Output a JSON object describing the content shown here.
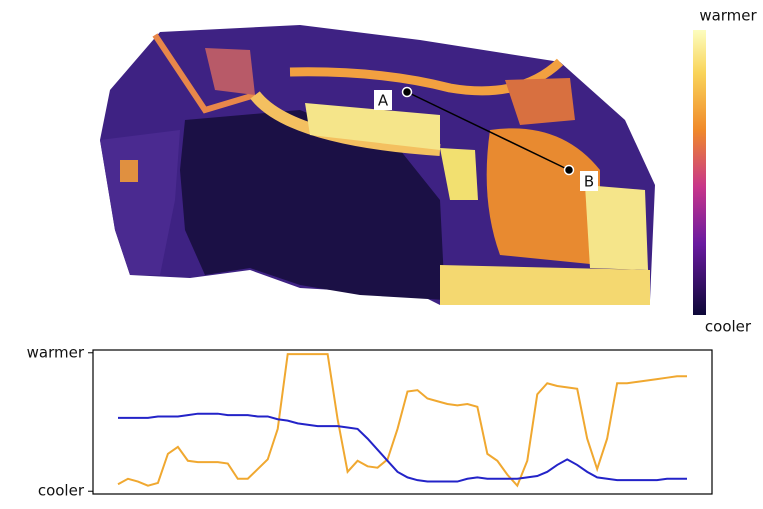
{
  "map": {
    "point_labels": [
      "A",
      "B"
    ],
    "colorbar": {
      "top_label": "warmer",
      "bottom_label": "cooler"
    }
  },
  "chart_data": {
    "type": "line",
    "categories": [
      null,
      null,
      null,
      null,
      null,
      null,
      null,
      null,
      null,
      null,
      null,
      null,
      null,
      null,
      null,
      null,
      null,
      null,
      null,
      null,
      null,
      null,
      null,
      null,
      null,
      null,
      null,
      null,
      null,
      null,
      null,
      null,
      null,
      null,
      null,
      null,
      null,
      null,
      null,
      null,
      null,
      null,
      null,
      null,
      null,
      null,
      null,
      null,
      null,
      null,
      null,
      null,
      null,
      null,
      null,
      null,
      null,
      null
    ],
    "series": [
      {
        "color": "#f0a830",
        "values": [
          0.05,
          0.09,
          0.07,
          0.04,
          0.06,
          0.27,
          0.32,
          0.22,
          0.21,
          0.21,
          0.21,
          0.2,
          0.09,
          0.09,
          0.16,
          0.23,
          0.45,
          0.99,
          0.99,
          0.99,
          0.99,
          0.99,
          0.52,
          0.14,
          0.22,
          0.18,
          0.17,
          0.23,
          0.45,
          0.72,
          0.73,
          0.67,
          0.65,
          0.63,
          0.62,
          0.63,
          0.61,
          0.27,
          0.22,
          0.12,
          0.04,
          0.22,
          0.7,
          0.78,
          0.76,
          0.75,
          0.74,
          0.38,
          0.16,
          0.38,
          0.78,
          0.78,
          0.79,
          0.8,
          0.81,
          0.82,
          0.83,
          0.83
        ]
      },
      {
        "color": "#2323c8",
        "values": [
          0.53,
          0.53,
          0.53,
          0.53,
          0.54,
          0.54,
          0.54,
          0.55,
          0.56,
          0.56,
          0.56,
          0.55,
          0.55,
          0.55,
          0.54,
          0.54,
          0.52,
          0.51,
          0.49,
          0.48,
          0.47,
          0.47,
          0.47,
          0.46,
          0.45,
          0.38,
          0.3,
          0.22,
          0.14,
          0.1,
          0.08,
          0.07,
          0.07,
          0.07,
          0.07,
          0.09,
          0.1,
          0.09,
          0.09,
          0.09,
          0.09,
          0.1,
          0.11,
          0.14,
          0.19,
          0.23,
          0.19,
          0.14,
          0.1,
          0.09,
          0.08,
          0.08,
          0.08,
          0.08,
          0.08,
          0.09,
          0.09,
          0.09
        ]
      }
    ],
    "ylim": [
      -0.02,
      1.02
    ],
    "yticks": [
      {
        "value": 1,
        "label": "warmer"
      },
      {
        "value": 0,
        "label": "cooler"
      }
    ]
  }
}
